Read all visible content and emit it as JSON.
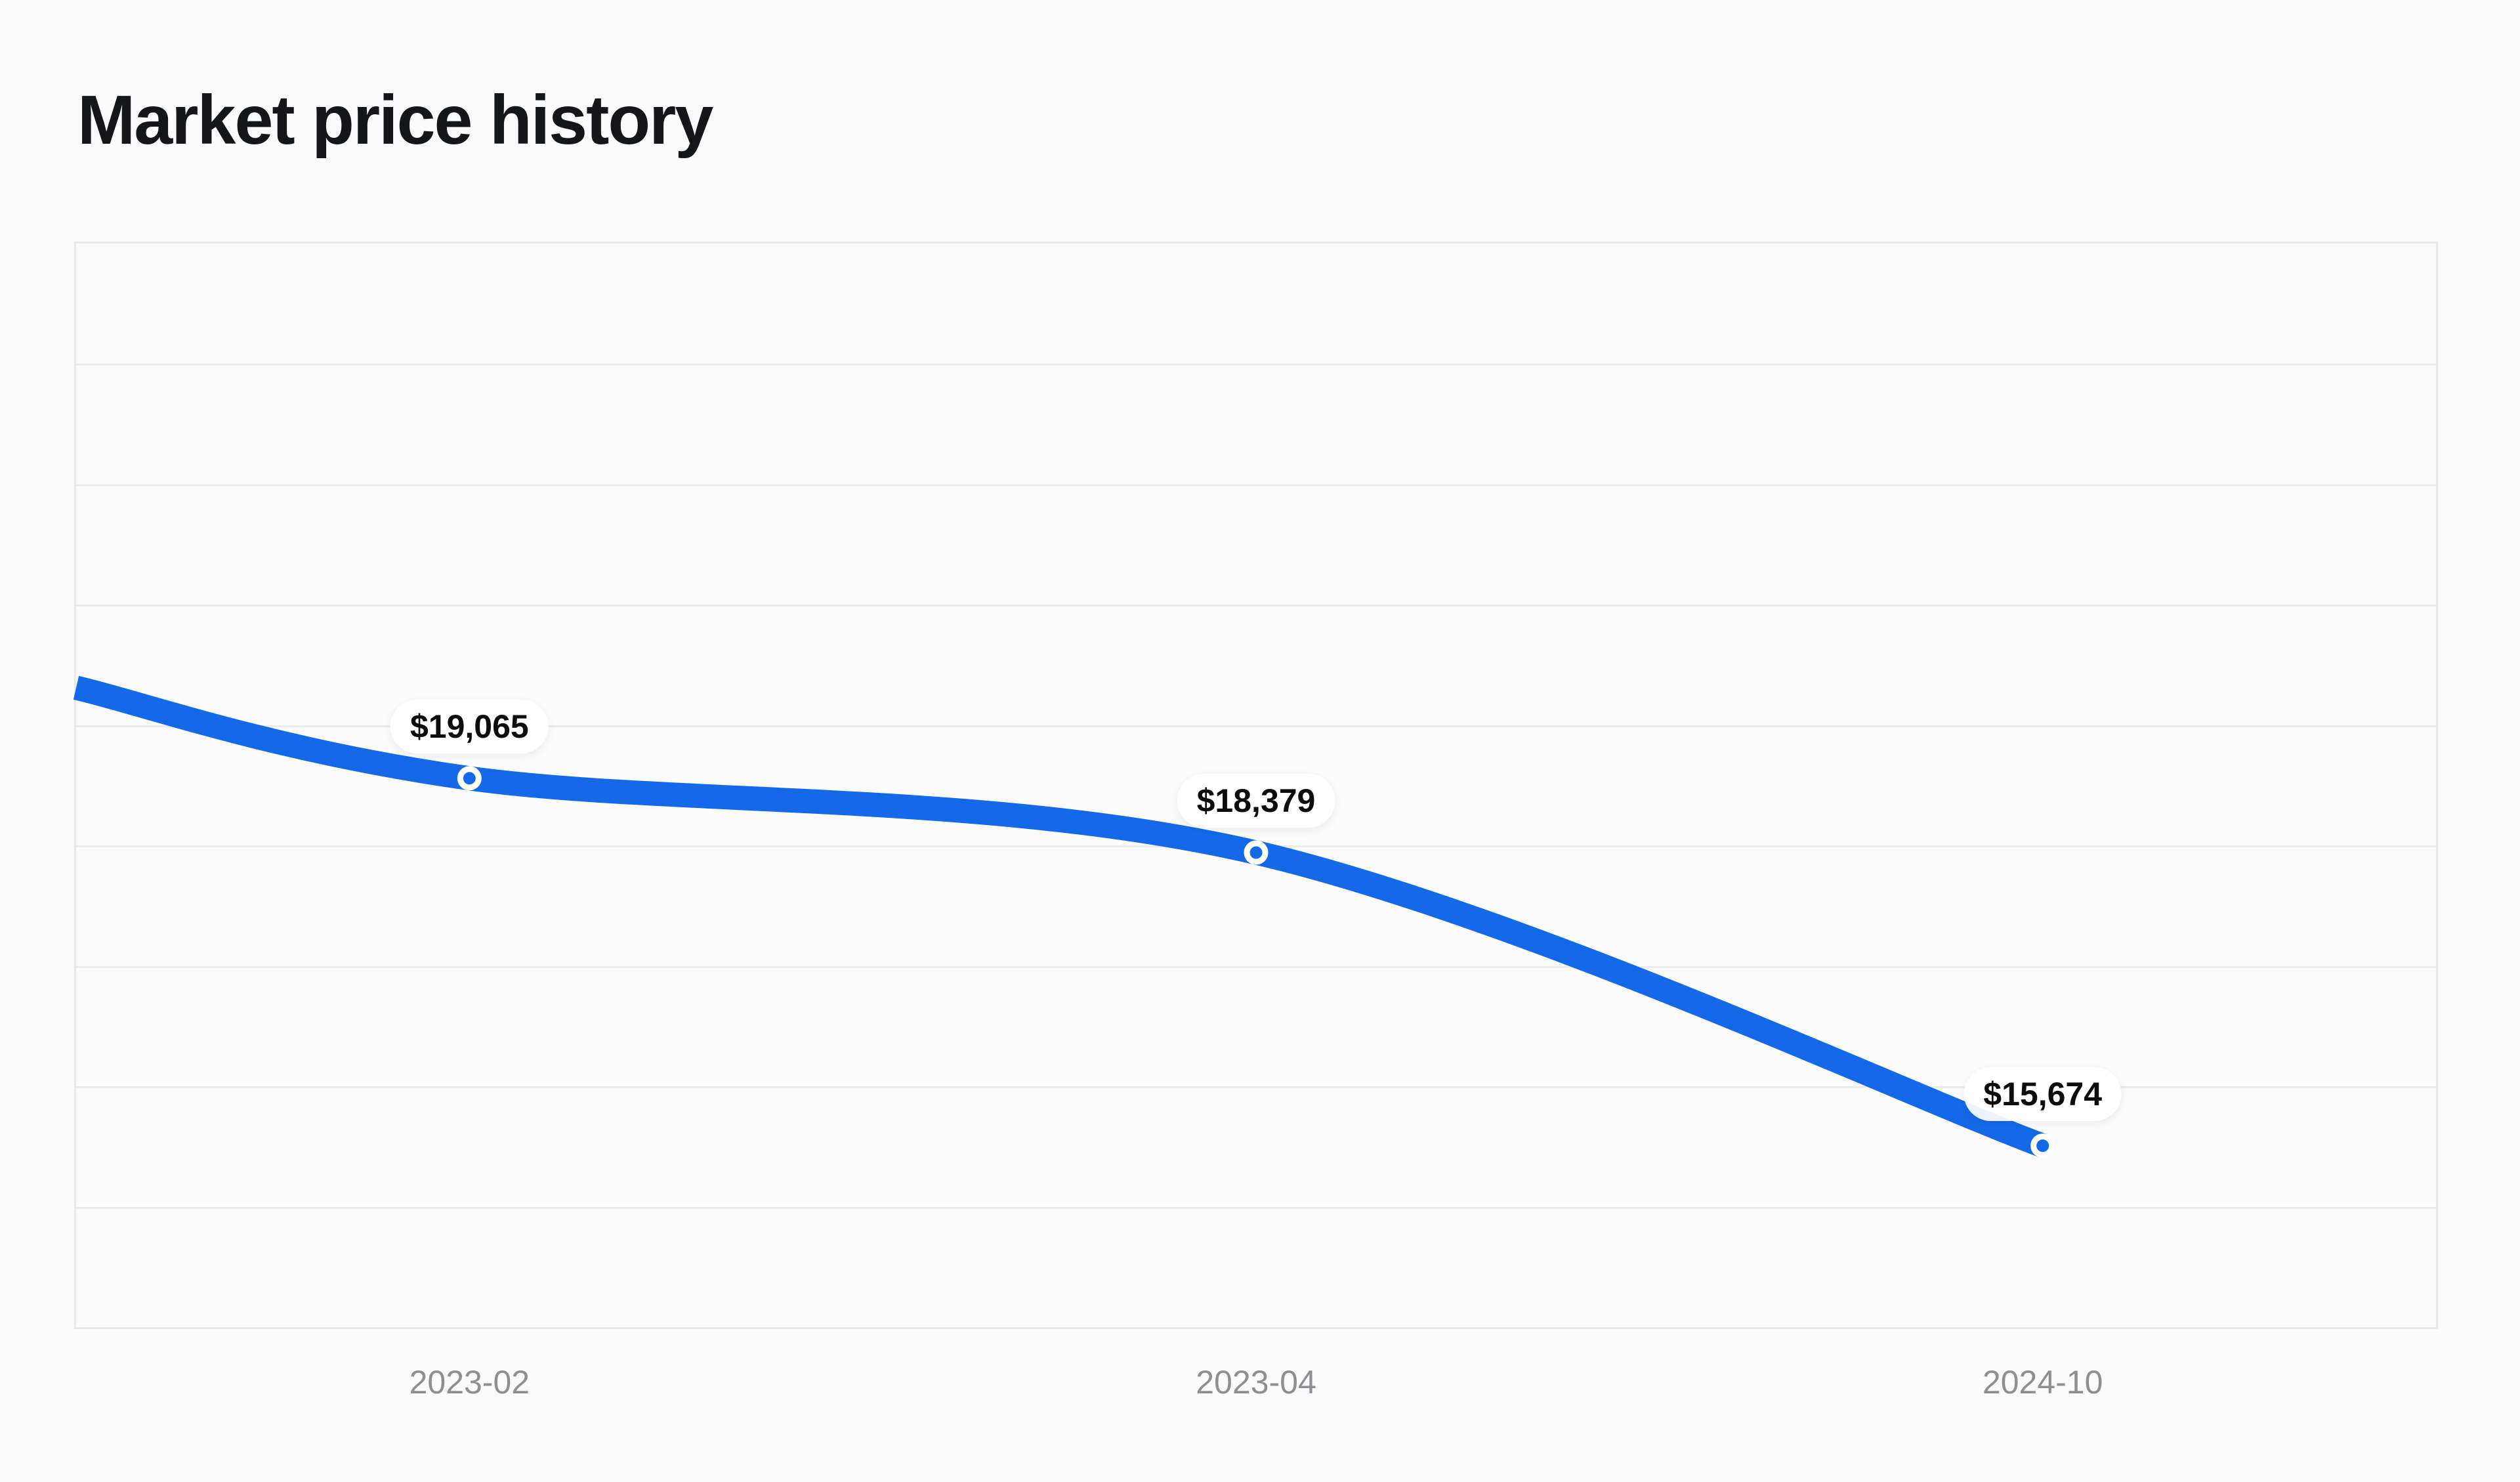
{
  "header": {
    "title": "Market price history"
  },
  "chart_data": {
    "type": "line",
    "title": "Market price history",
    "categories": [
      "2023-02",
      "2023-04",
      "2024-10"
    ],
    "series": [
      {
        "name": "Market price",
        "values": [
          19065,
          18379,
          15674
        ],
        "point_labels": [
          "$19,065",
          "$18,379",
          "$15,674"
        ]
      }
    ],
    "line_start_value_estimate": 19900,
    "xlabel": "",
    "ylabel": "",
    "ylim": [
      14000,
      24000
    ],
    "y_tick_labels": [],
    "x_tick_labels": [
      "2023-02",
      "2023-04",
      "2024-10"
    ],
    "horizontal_gridline_bands": 9,
    "vertical_gridlines": false,
    "legend_position": "none",
    "colors": {
      "line": "#1469E8",
      "marker_fill": "#1469E8",
      "marker_ring": "#FFFFFF",
      "pill_background": "rgba(255,255,255,0.92)",
      "pill_text": "#0C0D0E",
      "axis_text": "#8E8E93",
      "gridline": "#ECECEE",
      "plot_border": "#E8E8EA",
      "plot_background": "#FBFBFB",
      "page_background": "#FAFAFA",
      "title_text": "#151619"
    }
  }
}
